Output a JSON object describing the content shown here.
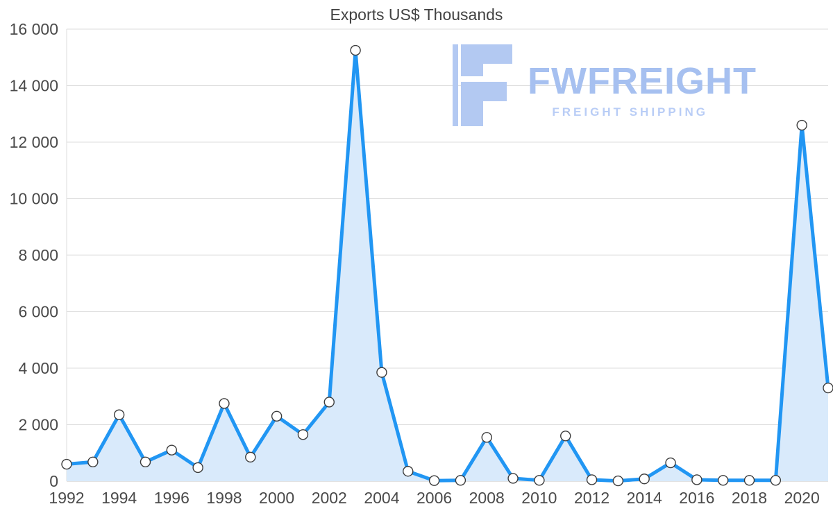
{
  "chart_data": {
    "type": "area",
    "title": "Exports US$ Thousands",
    "xlabel": "",
    "ylabel": "",
    "x": [
      1992,
      1993,
      1994,
      1995,
      1996,
      1997,
      1998,
      1999,
      2000,
      2001,
      2002,
      2003,
      2004,
      2005,
      2006,
      2007,
      2008,
      2009,
      2010,
      2011,
      2012,
      2013,
      2014,
      2015,
      2016,
      2017,
      2018,
      2019,
      2020,
      2021
    ],
    "values": [
      600,
      680,
      2350,
      680,
      1100,
      480,
      2750,
      850,
      2300,
      1650,
      2800,
      15250,
      3850,
      350,
      20,
      30,
      1550,
      100,
      30,
      1600,
      50,
      10,
      80,
      650,
      50,
      30,
      30,
      30,
      12600,
      3300
    ],
    "ylim": [
      0,
      16000
    ],
    "yticks": [
      0,
      2000,
      4000,
      6000,
      8000,
      10000,
      12000,
      14000,
      16000
    ],
    "xtick_years": [
      1992,
      1994,
      1996,
      1998,
      2000,
      2002,
      2004,
      2006,
      2008,
      2010,
      2012,
      2014,
      2016,
      2018,
      2020
    ],
    "grid": true,
    "legend": "none",
    "line_color": "#2196F3",
    "fill_color": "#D9EAFB",
    "marker_fill": "#FFFFFF",
    "marker_stroke": "#3C3C3C",
    "grid_color": "#DEDEDE",
    "axis_text_color": "#4A4A4A"
  },
  "watermark": {
    "brand": "FWFREIGHT",
    "tagline": "FREIGHT SHIPPING",
    "color": "#A6C0F0"
  }
}
